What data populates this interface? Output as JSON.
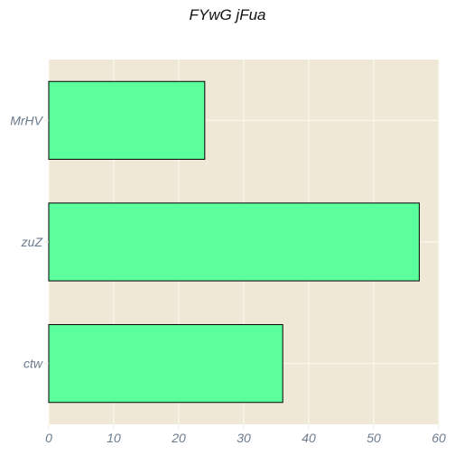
{
  "colors": {
    "bar_fill": "#5bff9b",
    "bar_stroke": "#000000",
    "plot_background": "#efe8d6",
    "grid": "#fbf8f0",
    "tick_label": "#6b7b8c"
  },
  "chart_data": {
    "type": "bar",
    "orientation": "horizontal",
    "title": "FYwG jFua",
    "categories": [
      "MrHV",
      "zuZ",
      "ctw"
    ],
    "values": [
      24,
      57,
      36
    ],
    "xlabel": "",
    "ylabel": "",
    "xlim": [
      0,
      60
    ],
    "xticks": [
      0,
      10,
      20,
      30,
      40,
      50,
      60
    ],
    "grid": true,
    "legend": "none"
  }
}
